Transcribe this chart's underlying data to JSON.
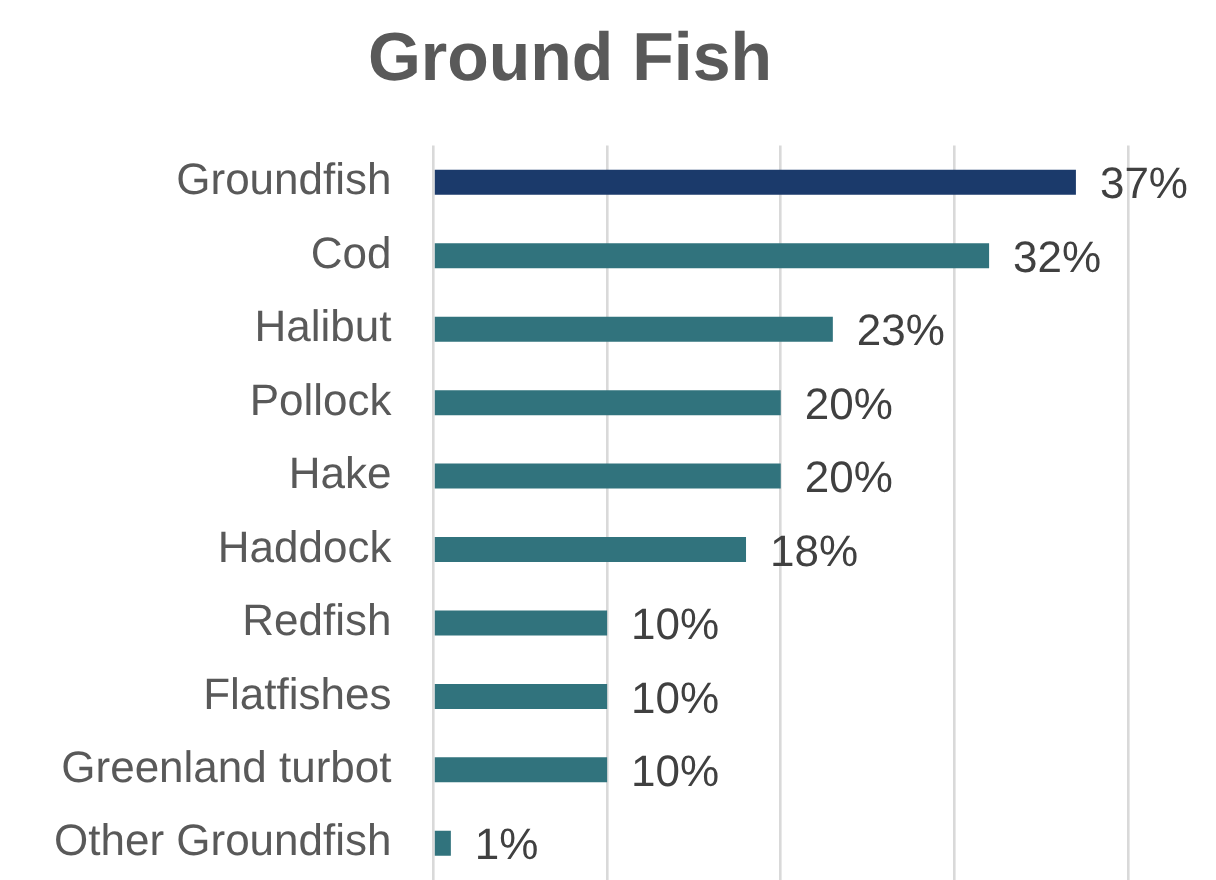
{
  "chart_data": {
    "type": "bar",
    "orientation": "horizontal",
    "title": "Ground Fish",
    "categories": [
      "Groundfish",
      "Cod",
      "Halibut",
      "Pollock",
      "Hake",
      "Haddock",
      "Redfish",
      "Flatfishes",
      "Greenland turbot",
      "Other Groundfish"
    ],
    "values": [
      37,
      32,
      23,
      20,
      20,
      18,
      10,
      10,
      10,
      1
    ],
    "colors": [
      "#1b3a6b",
      "#31737d",
      "#31737d",
      "#31737d",
      "#31737d",
      "#31737d",
      "#31737d",
      "#31737d",
      "#31737d",
      "#31737d"
    ],
    "value_labels": [
      "37%",
      "32%",
      "23%",
      "20%",
      "20%",
      "18%",
      "10%",
      "10%",
      "10%",
      "1%"
    ],
    "xlim": [
      0,
      40
    ],
    "xticks": [
      {
        "value": 0,
        "label": null
      },
      {
        "value": 10,
        "label": null
      },
      {
        "value": 20,
        "label": null
      },
      {
        "value": 30,
        "label": null
      },
      {
        "value": 40,
        "label": null
      }
    ],
    "grid": "x",
    "tick_labels": "y"
  }
}
